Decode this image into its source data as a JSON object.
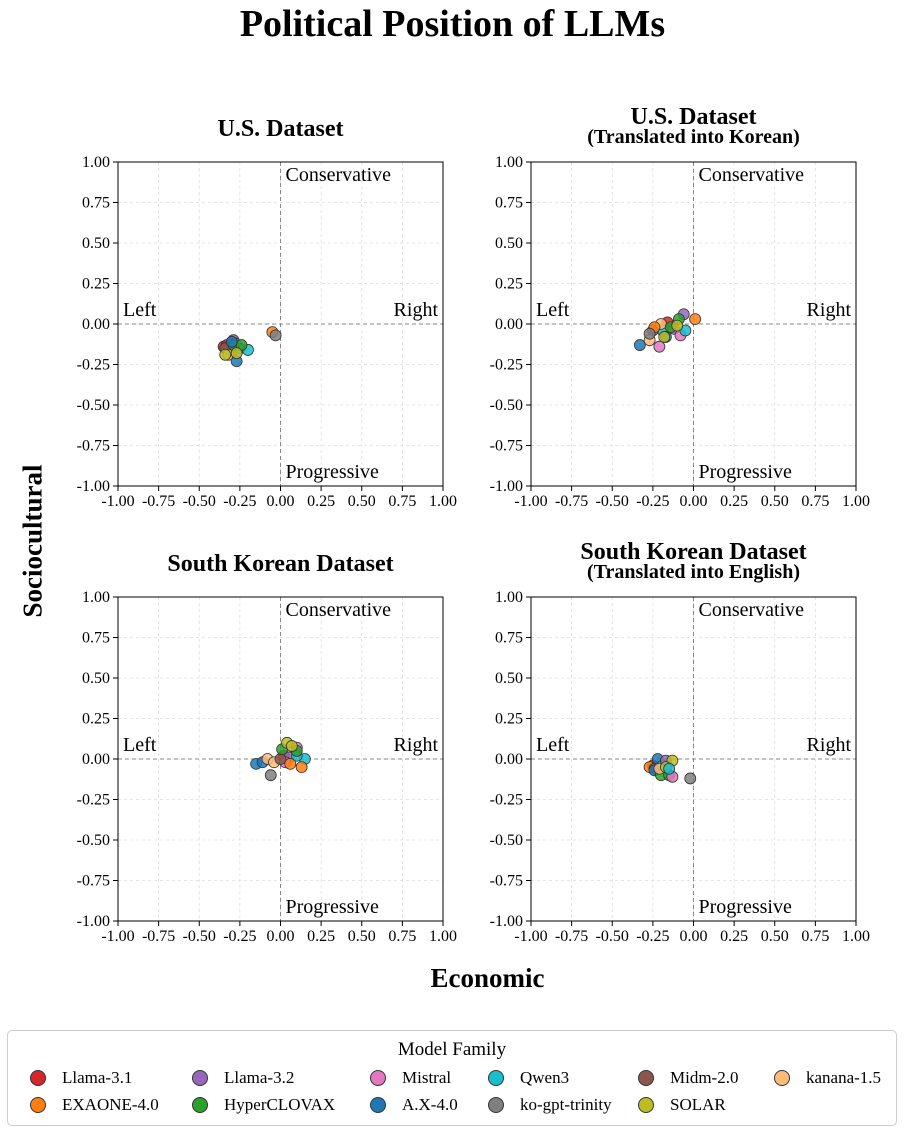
{
  "title": "Political Position of LLMs",
  "xlabel": "Economic",
  "ylabel": "Sociocultural",
  "quadrant_labels": {
    "top": "Conservative",
    "bottom": "Progressive",
    "left": "Left",
    "right": "Right"
  },
  "legend": {
    "title": "Model Family",
    "entries": [
      {
        "name": "Llama-3.1",
        "color": "#d62728"
      },
      {
        "name": "Llama-3.2",
        "color": "#9467bd"
      },
      {
        "name": "Mistral",
        "color": "#e377c2"
      },
      {
        "name": "Qwen3",
        "color": "#17becf"
      },
      {
        "name": "Midm-2.0",
        "color": "#8c564b"
      },
      {
        "name": "kanana-1.5",
        "color": "#ffbb78"
      },
      {
        "name": "EXAONE-4.0",
        "color": "#ff7f0e"
      },
      {
        "name": "HyperCLOVAX",
        "color": "#2ca02c"
      },
      {
        "name": "A.X-4.0",
        "color": "#1f77b4"
      },
      {
        "name": "ko-gpt-trinity",
        "color": "#7f7f7f"
      },
      {
        "name": "SOLAR",
        "color": "#bcbd22"
      }
    ]
  },
  "chart_data": [
    {
      "type": "scatter",
      "title": "U.S. Dataset",
      "subtitle": "",
      "xlim": [
        -1,
        1
      ],
      "ylim": [
        -1,
        1
      ],
      "ticks": [
        "-1.00",
        "-0.75",
        "-0.50",
        "-0.25",
        "0.00",
        "0.25",
        "0.50",
        "0.75",
        "1.00"
      ],
      "grid": true,
      "points": [
        {
          "series": "Llama-3.1",
          "x": -0.35,
          "y": -0.14
        },
        {
          "series": "Llama-3.1",
          "x": -0.33,
          "y": -0.13
        },
        {
          "series": "Llama-3.2",
          "x": -0.29,
          "y": -0.1
        },
        {
          "series": "Llama-3.2",
          "x": -0.31,
          "y": -0.15
        },
        {
          "series": "Mistral",
          "x": -0.3,
          "y": -0.17
        },
        {
          "series": "Qwen3",
          "x": -0.25,
          "y": -0.15
        },
        {
          "series": "Qwen3",
          "x": -0.2,
          "y": -0.16
        },
        {
          "series": "Midm-2.0",
          "x": -0.34,
          "y": -0.15
        },
        {
          "series": "kanana-1.5",
          "x": -0.32,
          "y": -0.19
        },
        {
          "series": "EXAONE-4.0",
          "x": -0.28,
          "y": -0.12
        },
        {
          "series": "EXAONE-4.0",
          "x": -0.05,
          "y": -0.05
        },
        {
          "series": "HyperCLOVAX",
          "x": -0.29,
          "y": -0.13
        },
        {
          "series": "HyperCLOVAX",
          "x": -0.24,
          "y": -0.13
        },
        {
          "series": "A.X-4.0",
          "x": -0.27,
          "y": -0.23
        },
        {
          "series": "A.X-4.0",
          "x": -0.3,
          "y": -0.11
        },
        {
          "series": "ko-gpt-trinity",
          "x": -0.03,
          "y": -0.07
        },
        {
          "series": "SOLAR",
          "x": -0.34,
          "y": -0.19
        },
        {
          "series": "SOLAR",
          "x": -0.27,
          "y": -0.18
        }
      ]
    },
    {
      "type": "scatter",
      "title": "U.S. Dataset",
      "subtitle": "(Translated into Korean)",
      "xlim": [
        -1,
        1
      ],
      "ylim": [
        -1,
        1
      ],
      "ticks": [
        "-1.00",
        "-0.75",
        "-0.50",
        "-0.25",
        "0.00",
        "0.25",
        "0.50",
        "0.75",
        "1.00"
      ],
      "grid": true,
      "points": [
        {
          "series": "A.X-4.0",
          "x": -0.33,
          "y": -0.13
        },
        {
          "series": "Llama-3.1",
          "x": -0.16,
          "y": 0.01
        },
        {
          "series": "Llama-3.2",
          "x": -0.06,
          "y": 0.06
        },
        {
          "series": "Llama-3.2",
          "x": -0.12,
          "y": -0.03
        },
        {
          "series": "Mistral",
          "x": -0.21,
          "y": -0.14
        },
        {
          "series": "Mistral",
          "x": -0.08,
          "y": -0.07
        },
        {
          "series": "Qwen3",
          "x": -0.05,
          "y": -0.04
        },
        {
          "series": "Qwen3",
          "x": -0.19,
          "y": -0.04
        },
        {
          "series": "Midm-2.0",
          "x": -0.25,
          "y": -0.04
        },
        {
          "series": "kanana-1.5",
          "x": -0.27,
          "y": -0.1
        },
        {
          "series": "kanana-1.5",
          "x": -0.2,
          "y": 0.0
        },
        {
          "series": "EXAONE-4.0",
          "x": 0.01,
          "y": 0.03
        },
        {
          "series": "EXAONE-4.0",
          "x": -0.24,
          "y": -0.02
        },
        {
          "series": "HyperCLOVAX",
          "x": -0.14,
          "y": -0.02
        },
        {
          "series": "HyperCLOVAX",
          "x": -0.09,
          "y": 0.03
        },
        {
          "series": "A.X-4.0",
          "x": -0.17,
          "y": -0.08
        },
        {
          "series": "ko-gpt-trinity",
          "x": -0.27,
          "y": -0.06
        },
        {
          "series": "SOLAR",
          "x": -0.18,
          "y": -0.08
        },
        {
          "series": "SOLAR",
          "x": -0.1,
          "y": -0.01
        }
      ]
    },
    {
      "type": "scatter",
      "title": "South Korean Dataset",
      "subtitle": "",
      "xlim": [
        -1,
        1
      ],
      "ylim": [
        -1,
        1
      ],
      "ticks": [
        "-1.00",
        "-0.75",
        "-0.50",
        "-0.25",
        "0.00",
        "0.25",
        "0.50",
        "0.75",
        "1.00"
      ],
      "grid": true,
      "points": [
        {
          "series": "A.X-4.0",
          "x": -0.15,
          "y": -0.03
        },
        {
          "series": "A.X-4.0",
          "x": -0.11,
          "y": -0.02
        },
        {
          "series": "ko-gpt-trinity",
          "x": -0.06,
          "y": -0.1
        },
        {
          "series": "kanana-1.5",
          "x": -0.08,
          "y": 0.0
        },
        {
          "series": "kanana-1.5",
          "x": -0.04,
          "y": -0.02
        },
        {
          "series": "Llama-3.1",
          "x": 0.02,
          "y": 0.02
        },
        {
          "series": "Llama-3.2",
          "x": 0.05,
          "y": 0.01
        },
        {
          "series": "Mistral",
          "x": 0.1,
          "y": 0.07
        },
        {
          "series": "Mistral",
          "x": 0.03,
          "y": -0.02
        },
        {
          "series": "Qwen3",
          "x": 0.15,
          "y": 0.0
        },
        {
          "series": "Qwen3",
          "x": 0.1,
          "y": 0.02
        },
        {
          "series": "Midm-2.0",
          "x": 0.0,
          "y": 0.0
        },
        {
          "series": "EXAONE-4.0",
          "x": 0.13,
          "y": -0.05
        },
        {
          "series": "EXAONE-4.0",
          "x": 0.06,
          "y": -0.03
        },
        {
          "series": "HyperCLOVAX",
          "x": 0.01,
          "y": 0.06
        },
        {
          "series": "HyperCLOVAX",
          "x": 0.1,
          "y": 0.05
        },
        {
          "series": "SOLAR",
          "x": 0.04,
          "y": 0.1
        },
        {
          "series": "SOLAR",
          "x": 0.07,
          "y": 0.08
        }
      ]
    },
    {
      "type": "scatter",
      "title": "South Korean Dataset",
      "subtitle": "(Translated into English)",
      "xlim": [
        -1,
        1
      ],
      "ylim": [
        -1,
        1
      ],
      "ticks": [
        "-1.00",
        "-0.75",
        "-0.50",
        "-0.25",
        "0.00",
        "0.25",
        "0.50",
        "0.75",
        "1.00"
      ],
      "grid": true,
      "points": [
        {
          "series": "Llama-3.1",
          "x": -0.25,
          "y": -0.04
        },
        {
          "series": "EXAONE-4.0",
          "x": -0.27,
          "y": -0.05
        },
        {
          "series": "Midm-2.0",
          "x": -0.24,
          "y": -0.06
        },
        {
          "series": "A.X-4.0",
          "x": -0.22,
          "y": 0.0
        },
        {
          "series": "A.X-4.0",
          "x": -0.24,
          "y": -0.07
        },
        {
          "series": "Qwen3",
          "x": -0.19,
          "y": -0.04
        },
        {
          "series": "HyperCLOVAX",
          "x": -0.2,
          "y": -0.1
        },
        {
          "series": "HyperCLOVAX",
          "x": -0.15,
          "y": -0.1
        },
        {
          "series": "Mistral",
          "x": -0.13,
          "y": -0.11
        },
        {
          "series": "Llama-3.2",
          "x": -0.17,
          "y": -0.01
        },
        {
          "series": "kanana-1.5",
          "x": -0.21,
          "y": -0.06
        },
        {
          "series": "SOLAR",
          "x": -0.13,
          "y": -0.01
        },
        {
          "series": "SOLAR",
          "x": -0.17,
          "y": -0.05
        },
        {
          "series": "ko-gpt-trinity",
          "x": -0.02,
          "y": -0.12
        },
        {
          "series": "Qwen3",
          "x": -0.15,
          "y": -0.06
        }
      ]
    }
  ]
}
